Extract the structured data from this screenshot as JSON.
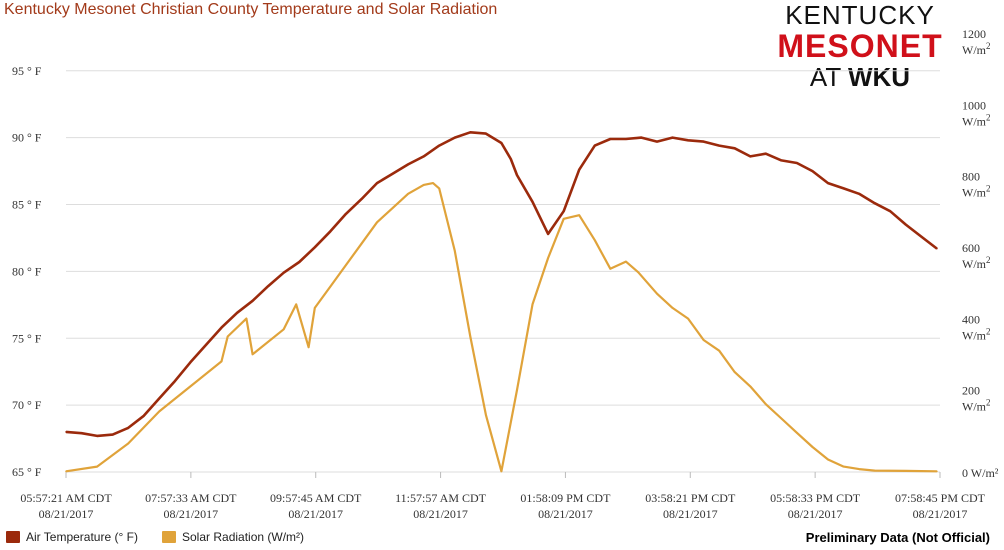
{
  "colors": {
    "temperature": "#9b2a0c",
    "solar": "#e0a33a",
    "grid": "#dddddd",
    "title": "#a23a1a"
  },
  "logo": {
    "line1": "KENTUCKY",
    "line2": "MESONET",
    "line3a": "AT ",
    "line3b": "WKU"
  },
  "legend": {
    "temp_label": "Air Temperature (° F)",
    "solar_label": "Solar Radiation (W/m²)",
    "note": "Preliminary Data (Not Official)"
  },
  "chart_data": {
    "type": "line",
    "title": "Kentucky Mesonet Christian County Temperature and Solar Radiation",
    "x_ticks": [
      {
        "time": "05:57:21 AM CDT",
        "date": "08/21/2017"
      },
      {
        "time": "07:57:33 AM CDT",
        "date": "08/21/2017"
      },
      {
        "time": "09:57:45 AM CDT",
        "date": "08/21/2017"
      },
      {
        "time": "11:57:57 AM CDT",
        "date": "08/21/2017"
      },
      {
        "time": "01:58:09 PM CDT",
        "date": "08/21/2017"
      },
      {
        "time": "03:58:21 PM CDT",
        "date": "08/21/2017"
      },
      {
        "time": "05:58:33 PM CDT",
        "date": "08/21/2017"
      },
      {
        "time": "07:58:45 PM CDT",
        "date": "08/21/2017"
      }
    ],
    "x_unit": "hours after 05:57:21 AM CDT",
    "xlim": [
      0,
      14.05
    ],
    "left_axis": {
      "ylim": [
        65,
        97
      ],
      "ticks": [
        "65 ° F",
        "70 ° F",
        "75 ° F",
        "80 ° F",
        "85 ° F",
        "90 ° F",
        "95 ° F"
      ],
      "tick_values": [
        65,
        70,
        75,
        80,
        85,
        90,
        95
      ]
    },
    "right_axis": {
      "ylim": [
        0,
        1200
      ],
      "tick_values": [
        0,
        200,
        400,
        600,
        800,
        1000,
        1200
      ],
      "unit": "W/m",
      "unit_sup": "2",
      "zero_label": "0 W/m²"
    },
    "series": [
      {
        "name": "Air Temperature (° F)",
        "axis": "left",
        "x": [
          0,
          0.25,
          0.5,
          0.75,
          1,
          1.25,
          1.5,
          1.75,
          2,
          2.25,
          2.5,
          2.75,
          3,
          3.25,
          3.5,
          3.75,
          4,
          4.25,
          4.5,
          4.75,
          5,
          5.25,
          5.5,
          5.75,
          6,
          6.25,
          6.5,
          6.75,
          7,
          7.15,
          7.25,
          7.5,
          7.75,
          8,
          8.25,
          8.5,
          8.75,
          9,
          9.25,
          9.5,
          9.75,
          10,
          10.25,
          10.5,
          10.75,
          11,
          11.25,
          11.5,
          11.75,
          12,
          12.25,
          12.5,
          12.75,
          13,
          13.25,
          13.5,
          13.75,
          14
        ],
        "y": [
          68,
          67.9,
          67.7,
          67.8,
          68.3,
          69.2,
          70.5,
          71.8,
          73.2,
          74.5,
          75.8,
          76.9,
          77.8,
          78.9,
          79.9,
          80.7,
          81.8,
          83,
          84.3,
          85.4,
          86.6,
          87.3,
          88,
          88.6,
          89.4,
          90,
          90.4,
          90.3,
          89.6,
          88.4,
          87.2,
          85.2,
          82.8,
          84.5,
          87.6,
          89.4,
          89.9,
          89.9,
          90,
          89.7,
          90,
          89.8,
          89.7,
          89.4,
          89.2,
          88.6,
          88.8,
          88.3,
          88.1,
          87.5,
          86.6,
          86.2,
          85.8,
          85.1,
          84.5,
          83.5,
          82.6,
          81.7
        ]
      },
      {
        "name": "Solar Radiation (W/m²)",
        "axis": "right",
        "x": [
          0,
          0.5,
          1,
          1.5,
          2,
          2.5,
          2.6,
          2.9,
          3,
          3.5,
          3.7,
          3.9,
          4,
          4.25,
          4.5,
          4.75,
          5,
          5.25,
          5.5,
          5.75,
          5.9,
          6,
          6.25,
          6.5,
          6.75,
          7,
          7.25,
          7.5,
          7.75,
          8,
          8.25,
          8.5,
          8.75,
          9,
          9.2,
          9.5,
          9.75,
          10,
          10.25,
          10.5,
          10.75,
          11,
          11.25,
          11.5,
          11.75,
          12,
          12.25,
          12.5,
          12.75,
          13,
          13.5,
          14
        ],
        "y": [
          2,
          15,
          80,
          170,
          240,
          310,
          380,
          430,
          330,
          400,
          470,
          350,
          460,
          520,
          580,
          640,
          700,
          740,
          780,
          805,
          810,
          795,
          620,
          380,
          160,
          2,
          230,
          470,
          600,
          710,
          720,
          650,
          570,
          590,
          560,
          500,
          460,
          430,
          370,
          340,
          280,
          240,
          190,
          150,
          110,
          70,
          35,
          15,
          8,
          4,
          3,
          2
        ]
      }
    ]
  }
}
